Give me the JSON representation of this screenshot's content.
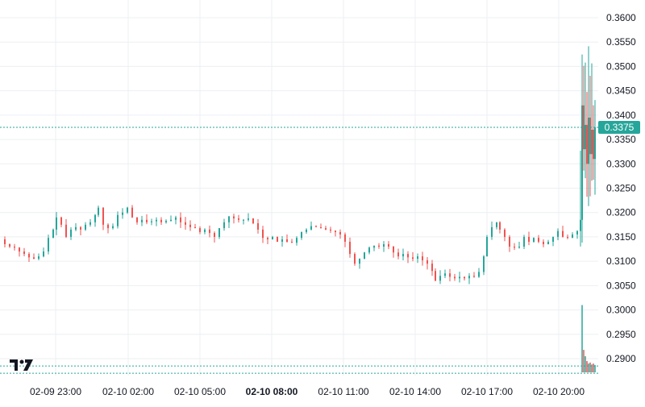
{
  "chart_data": {
    "type": "candlestick",
    "grid": true,
    "colors": {
      "up": "#26a69a",
      "down": "#ef5350",
      "background": "#ffffff",
      "grid": "#eceff2",
      "axis_text": "#131722",
      "price_line": "#26a69a"
    },
    "price_axis": {
      "ticks": [
        "0.3600",
        "0.3550",
        "0.3500",
        "0.3450",
        "0.3400",
        "0.3350",
        "0.3300",
        "0.3250",
        "0.3200",
        "0.3150",
        "0.3100",
        "0.3050",
        "0.3000",
        "0.2950",
        "0.2900"
      ],
      "range": [
        0.288,
        0.362
      ]
    },
    "time_axis": {
      "ticks": [
        {
          "label": "02-09 23:00",
          "bold": false
        },
        {
          "label": "02-10 02:00",
          "bold": false
        },
        {
          "label": "02-10 05:00",
          "bold": false
        },
        {
          "label": "02-10 08:00",
          "bold": true
        },
        {
          "label": "02-10 11:00",
          "bold": false
        },
        {
          "label": "02-10 14:00",
          "bold": false
        },
        {
          "label": "02-10 17:00",
          "bold": false
        },
        {
          "label": "02-10 20:00",
          "bold": false
        }
      ]
    },
    "last_price": {
      "label": "0.3375",
      "value": 0.3375
    },
    "series": [
      {
        "name": "price",
        "close_path": [
          [
            0,
            0.3145
          ],
          [
            6,
            0.3135
          ],
          [
            12,
            0.313
          ],
          [
            18,
            0.3128
          ],
          [
            24,
            0.312
          ],
          [
            30,
            0.3115
          ],
          [
            36,
            0.3108
          ],
          [
            42,
            0.3105
          ],
          [
            48,
            0.311
          ],
          [
            54,
            0.312
          ],
          [
            60,
            0.3148
          ],
          [
            66,
            0.3165
          ],
          [
            70,
            0.319
          ],
          [
            76,
            0.3175
          ],
          [
            82,
            0.315
          ],
          [
            88,
            0.3165
          ],
          [
            94,
            0.317
          ],
          [
            100,
            0.3165
          ],
          [
            106,
            0.3175
          ],
          [
            112,
            0.318
          ],
          [
            118,
            0.3195
          ],
          [
            122,
            0.321
          ],
          [
            128,
            0.3175
          ],
          [
            134,
            0.3168
          ],
          [
            140,
            0.3172
          ],
          [
            146,
            0.3195
          ],
          [
            152,
            0.32
          ],
          [
            158,
            0.321
          ],
          [
            164,
            0.319
          ],
          [
            170,
            0.318
          ],
          [
            176,
            0.3185
          ],
          [
            182,
            0.318
          ],
          [
            188,
            0.3182
          ],
          [
            194,
            0.3185
          ],
          [
            200,
            0.318
          ],
          [
            206,
            0.3183
          ],
          [
            212,
            0.3185
          ],
          [
            218,
            0.319
          ],
          [
            224,
            0.318
          ],
          [
            230,
            0.3175
          ],
          [
            236,
            0.317
          ],
          [
            242,
            0.3168
          ],
          [
            248,
            0.316
          ],
          [
            254,
            0.3165
          ],
          [
            260,
            0.3158
          ],
          [
            266,
            0.315
          ],
          [
            272,
            0.3168
          ],
          [
            278,
            0.318
          ],
          [
            284,
            0.3192
          ],
          [
            290,
            0.3188
          ],
          [
            296,
            0.3185
          ],
          [
            302,
            0.3185
          ],
          [
            308,
            0.3188
          ],
          [
            314,
            0.3178
          ],
          [
            320,
            0.3165
          ],
          [
            326,
            0.3148
          ],
          [
            332,
            0.3145
          ],
          [
            338,
            0.315
          ],
          [
            344,
            0.314
          ],
          [
            350,
            0.3145
          ],
          [
            356,
            0.314
          ],
          [
            362,
            0.3138
          ],
          [
            368,
            0.3148
          ],
          [
            374,
            0.316
          ],
          [
            380,
            0.3165
          ],
          [
            386,
            0.3172
          ],
          [
            392,
            0.317
          ],
          [
            398,
            0.3168
          ],
          [
            404,
            0.3165
          ],
          [
            410,
            0.3163
          ],
          [
            416,
            0.316
          ],
          [
            422,
            0.3155
          ],
          [
            428,
            0.314
          ],
          [
            434,
            0.3115
          ],
          [
            440,
            0.3095
          ],
          [
            446,
            0.3105
          ],
          [
            452,
            0.3118
          ],
          [
            458,
            0.3128
          ],
          [
            464,
            0.3132
          ],
          [
            470,
            0.313
          ],
          [
            476,
            0.3135
          ],
          [
            482,
            0.313
          ],
          [
            488,
            0.3118
          ],
          [
            494,
            0.311
          ],
          [
            500,
            0.3115
          ],
          [
            506,
            0.3108
          ],
          [
            512,
            0.3105
          ],
          [
            518,
            0.311
          ],
          [
            524,
            0.3102
          ],
          [
            530,
            0.3095
          ],
          [
            536,
            0.308
          ],
          [
            540,
            0.306
          ],
          [
            546,
            0.307
          ],
          [
            552,
            0.3075
          ],
          [
            558,
            0.3068
          ],
          [
            564,
            0.3065
          ],
          [
            570,
            0.3068
          ],
          [
            576,
            0.3065
          ],
          [
            582,
            0.307
          ],
          [
            588,
            0.3068
          ],
          [
            594,
            0.3078
          ],
          [
            600,
            0.311
          ],
          [
            604,
            0.315
          ],
          [
            610,
            0.317
          ],
          [
            616,
            0.318
          ],
          [
            620,
            0.3165
          ],
          [
            626,
            0.315
          ],
          [
            632,
            0.313
          ],
          [
            638,
            0.3128
          ],
          [
            644,
            0.313
          ],
          [
            650,
            0.315
          ],
          [
            656,
            0.314
          ],
          [
            662,
            0.3148
          ],
          [
            668,
            0.314
          ],
          [
            674,
            0.3135
          ],
          [
            680,
            0.314
          ],
          [
            686,
            0.315
          ],
          [
            692,
            0.3162
          ],
          [
            698,
            0.315
          ],
          [
            704,
            0.3148
          ],
          [
            710,
            0.3155
          ],
          [
            716,
            0.3162
          ],
          [
            720,
            0.3185
          ],
          [
            722,
            0.342
          ],
          [
            724,
            0.333
          ],
          [
            726,
            0.338
          ],
          [
            728,
            0.33
          ],
          [
            730,
            0.3395
          ],
          [
            732,
            0.332
          ],
          [
            734,
            0.337
          ],
          [
            736,
            0.331
          ],
          [
            738,
            0.3375
          ]
        ]
      },
      {
        "name": "volume",
        "spikes": [
          [
            722,
            0.301
          ],
          [
            724,
            0.2918
          ],
          [
            726,
            0.2905
          ],
          [
            728,
            0.2895
          ],
          [
            730,
            0.289
          ],
          [
            732,
            0.2892
          ],
          [
            734,
            0.2888
          ],
          [
            736,
            0.289
          ],
          [
            738,
            0.2887
          ]
        ]
      }
    ],
    "reference_lines": [
      0.2885,
      0.2875
    ]
  }
}
